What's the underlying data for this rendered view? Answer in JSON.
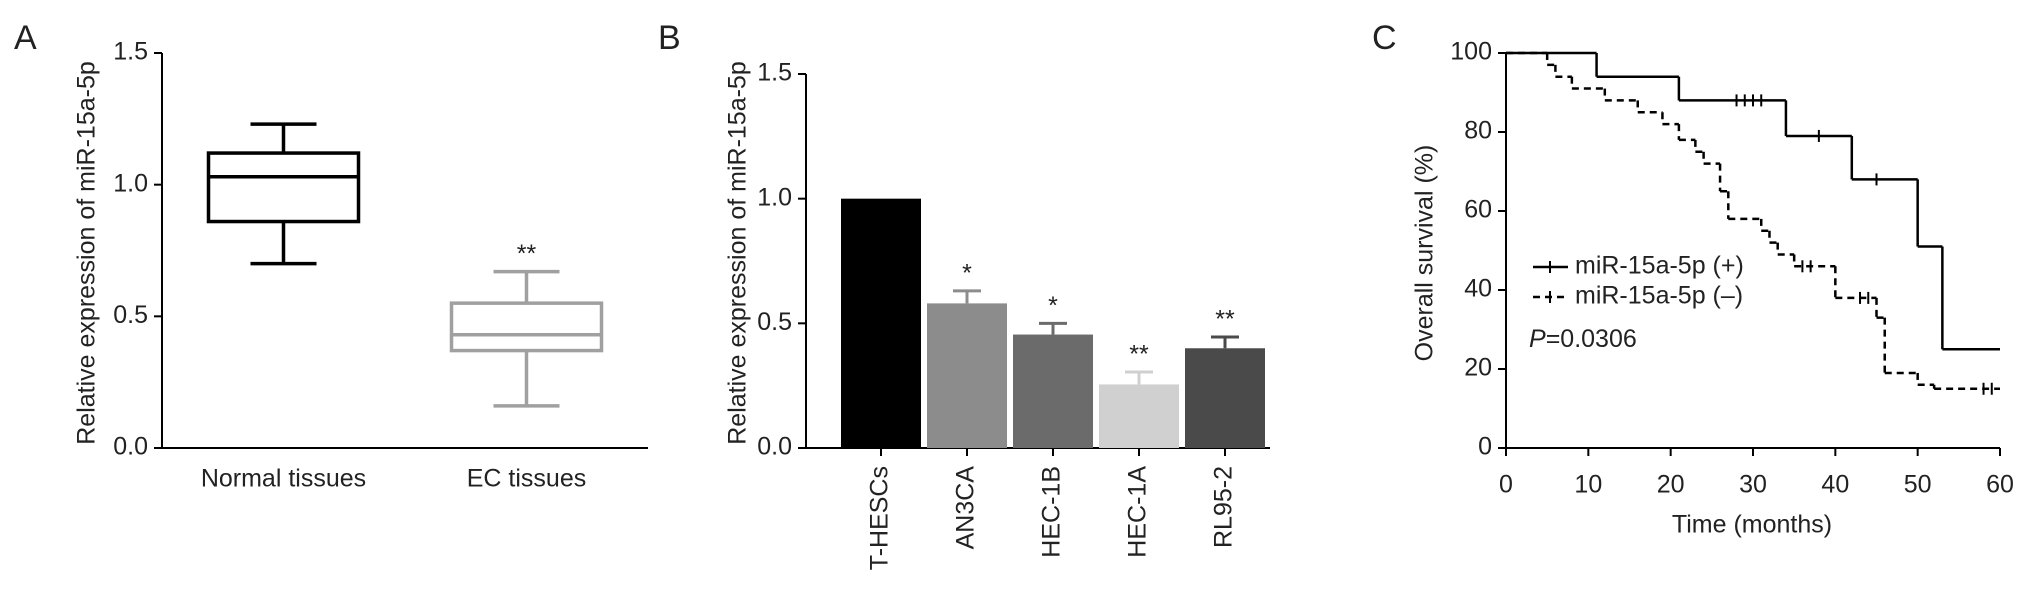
{
  "chart_data": [
    {
      "type": "box",
      "panel_label": "A",
      "ylabel": "Relative expression of miR-15a-5p",
      "categories": [
        "Normal tissues",
        "EC tissues"
      ],
      "boxes": [
        {
          "min": 0.7,
          "q1": 0.86,
          "median": 1.03,
          "q3": 1.12,
          "max": 1.23
        },
        {
          "min": 0.16,
          "q1": 0.37,
          "median": 0.43,
          "q3": 0.55,
          "max": 0.67
        }
      ],
      "colors": [
        "#000000",
        "#a0a0a0"
      ],
      "annotations": [
        null,
        "**"
      ],
      "ylim": [
        0,
        1.5
      ],
      "yticks": [
        {
          "value": 0,
          "label": "0.0"
        },
        {
          "value": 0.5,
          "label": "0.5"
        },
        {
          "value": 1,
          "label": "1.0"
        },
        {
          "value": 1.5,
          "label": "1.5"
        }
      ]
    },
    {
      "type": "bar",
      "panel_label": "B",
      "ylabel": "Relative expression of miR-15a-5p",
      "categories": [
        "T-HESCs",
        "AN3CA",
        "HEC-1B",
        "HEC-1A",
        "RL95-2"
      ],
      "values": [
        1.0,
        0.58,
        0.455,
        0.255,
        0.4
      ],
      "errors": [
        null,
        0.05,
        0.045,
        0.05,
        0.045
      ],
      "colors": [
        "#000000",
        "#8c8c8c",
        "#6b6b6b",
        "#d0d0d0",
        "#4a4a4a"
      ],
      "annotations": [
        null,
        "*",
        "*",
        "**",
        "**"
      ],
      "ylim": [
        0,
        1.5
      ],
      "yticks": [
        {
          "value": 0,
          "label": "0.0"
        },
        {
          "value": 0.5,
          "label": "0.5"
        },
        {
          "value": 1,
          "label": "1.0"
        },
        {
          "value": 1.5,
          "label": "1.5"
        }
      ]
    },
    {
      "type": "survival",
      "panel_label": "C",
      "xlabel": "Time (months)",
      "ylabel": "Overall survival (%)",
      "series": [
        {
          "name": "miR-15a-5p (+)",
          "color": "#000000",
          "dashed": false,
          "x": [
            0,
            11,
            21,
            34,
            42,
            50,
            53
          ],
          "values": [
            100,
            94,
            88,
            79,
            68,
            51,
            25
          ],
          "censored": {
            "x": [
              28,
              29,
              30,
              31,
              38,
              45
            ],
            "y": [
              88,
              88,
              88,
              88,
              79,
              68
            ]
          }
        },
        {
          "name": "miR-15a-5p (–)",
          "color": "#000000",
          "dashed": true,
          "x": [
            0,
            5,
            6,
            8,
            12,
            16,
            19,
            21,
            23,
            24,
            26,
            27,
            31,
            32,
            33,
            35,
            40,
            45,
            46,
            50,
            52
          ],
          "values": [
            100,
            97,
            94,
            91,
            88,
            85,
            82,
            78,
            75,
            72,
            65,
            58,
            55,
            52,
            49,
            46,
            38,
            33,
            19,
            16,
            15
          ],
          "censored": {
            "x": [
              36,
              37,
              43,
              44,
              58,
              59
            ],
            "y": [
              46,
              46,
              38,
              38,
              15,
              15
            ]
          }
        }
      ],
      "p_symbol": "P",
      "p_text": "=0.0306",
      "xlim": [
        0,
        60
      ],
      "xticks": [
        0,
        10,
        20,
        30,
        40,
        50,
        60
      ],
      "ylim": [
        0,
        100
      ],
      "yticks": [
        0,
        20,
        40,
        60,
        80,
        100
      ]
    }
  ]
}
